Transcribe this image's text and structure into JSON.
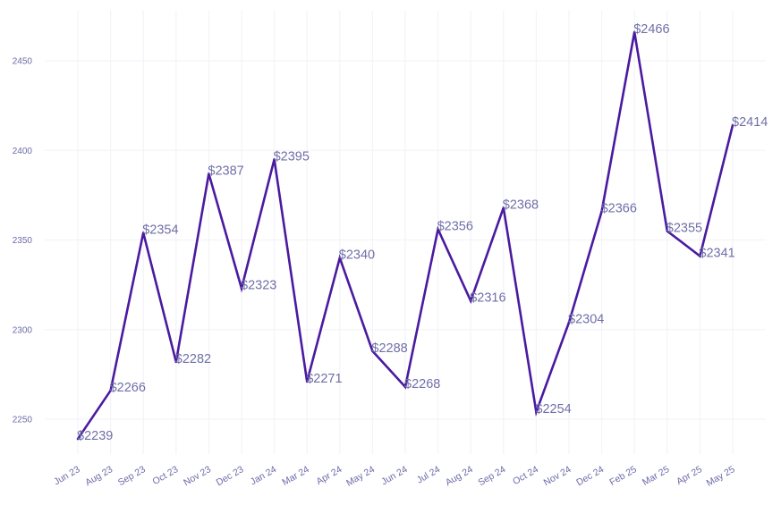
{
  "chart_data": {
    "type": "line",
    "title": "",
    "xlabel": "",
    "ylabel": "",
    "categories": [
      "Jun 23",
      "Aug 23",
      "Sep 23",
      "Oct 23",
      "Nov 23",
      "Dec 23",
      "Jan 24",
      "Mar 24",
      "Apr 24",
      "May 24",
      "Jun 24",
      "Jul 24",
      "Aug 24",
      "Sep 24",
      "Oct 24",
      "Nov 24",
      "Dec 24",
      "Feb 25",
      "Mar 25",
      "Apr 25",
      "May 25"
    ],
    "series": [
      {
        "values": [
          2239,
          2266,
          2354,
          2282,
          2387,
          2323,
          2395,
          2271,
          2340,
          2288,
          2268,
          2356,
          2316,
          2368,
          2254,
          2304,
          2366,
          2466,
          2355,
          2341,
          2414
        ],
        "labels": [
          "$2239",
          "$2266",
          "$2354",
          "$2282",
          "$2387",
          "$2323",
          "$2395",
          "$2271",
          "$2340",
          "$2288",
          "$2268",
          "$2356",
          "$2316",
          "$2368",
          "$2254",
          "$2304",
          "$2366",
          "$2466",
          "$2355",
          "$2341",
          "$2414"
        ],
        "color": "#4a1aa0"
      }
    ],
    "yticks": [
      "2250",
      "2300",
      "2350",
      "2400",
      "2450"
    ],
    "ylim": [
      2225,
      2478
    ],
    "grid": true,
    "legend": "none"
  }
}
